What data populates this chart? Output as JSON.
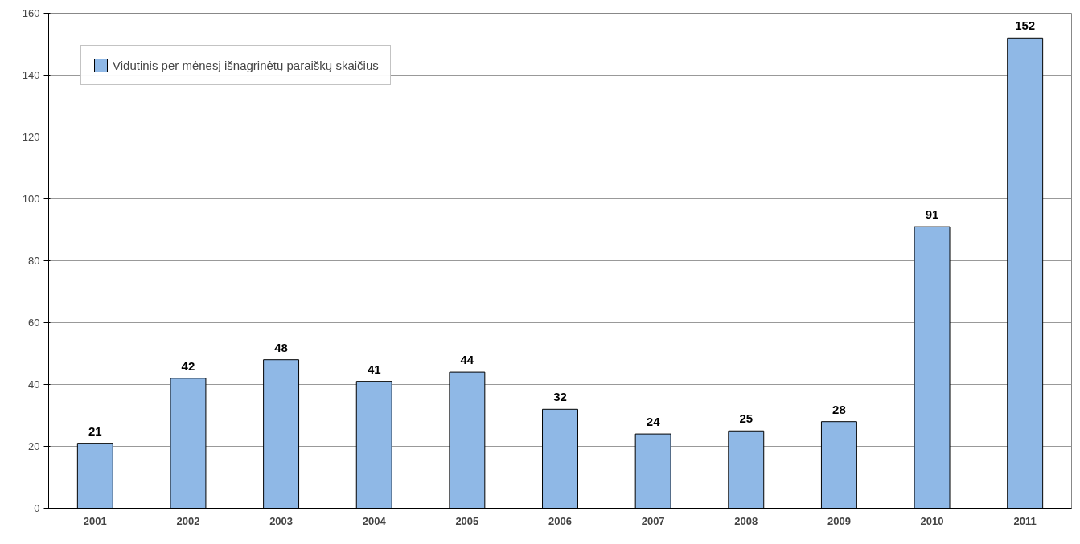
{
  "chart_data": {
    "type": "bar",
    "categories": [
      "2001",
      "2002",
      "2003",
      "2004",
      "2005",
      "2006",
      "2007",
      "2008",
      "2009",
      "2010",
      "2011"
    ],
    "series": [
      {
        "name": "Vidutinis per mėnesį išnagrinėtų paraiškų skaičius",
        "color": "#8fb8e6",
        "values": [
          21,
          42,
          48,
          41,
          44,
          32,
          24,
          25,
          28,
          91,
          152
        ]
      }
    ],
    "ylim": [
      0,
      160
    ],
    "yticks": [
      0,
      20,
      40,
      60,
      80,
      100,
      120,
      140,
      160
    ],
    "grid": "y",
    "legend": "top left",
    "data_labels": true
  }
}
